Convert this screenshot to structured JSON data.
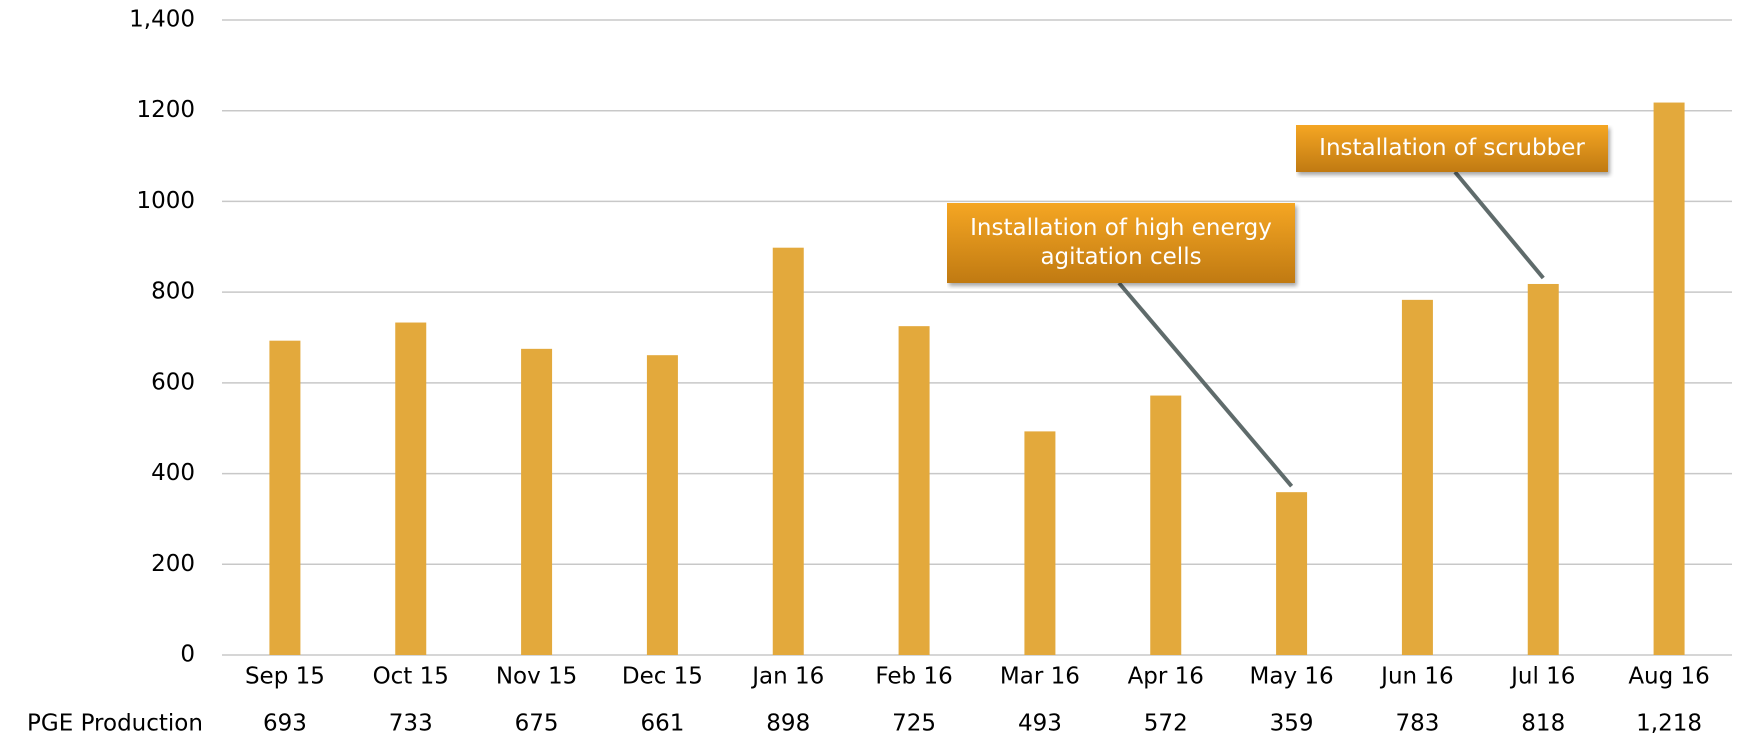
{
  "chart_data": {
    "type": "bar",
    "categories": [
      "Sep 15",
      "Oct 15",
      "Nov 15",
      "Dec 15",
      "Jan 16",
      "Feb 16",
      "Mar 16",
      "Apr 16",
      "May 16",
      "Jun 16",
      "Jul 16",
      "Aug 16"
    ],
    "series": [
      {
        "name": "PGE Production",
        "color": "#e3a93c",
        "values": [
          693,
          733,
          675,
          661,
          898,
          725,
          493,
          572,
          359,
          783,
          818,
          1218
        ],
        "value_labels": [
          "693",
          "733",
          "675",
          "661",
          "898",
          "725",
          "493",
          "572",
          "359",
          "783",
          "818",
          "1,218"
        ]
      }
    ],
    "ylim": [
      0,
      1400
    ],
    "yticks": [
      0,
      200,
      400,
      600,
      800,
      1000,
      1200,
      {
        "value": 1400,
        "label": "1,400"
      }
    ],
    "grid": true,
    "annotations": [
      {
        "text": "Installation of high energy agitation cells"
      },
      {
        "text": "Installation of scrubber"
      }
    ]
  }
}
